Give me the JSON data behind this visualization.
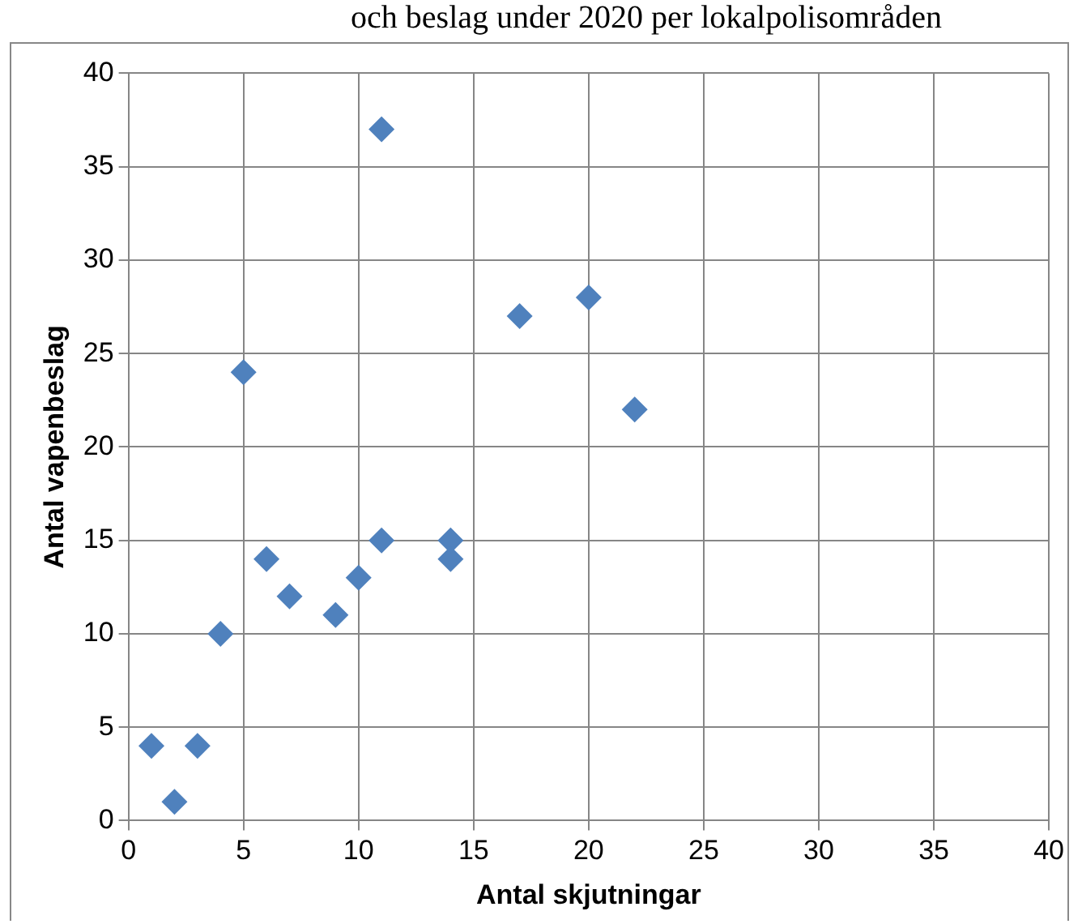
{
  "chart_data": {
    "type": "scatter",
    "title": "och beslag under 2020 per lokalpolisområden",
    "xlabel": "Antal skjutningar",
    "ylabel": "Antal vapenbeslag",
    "x": [
      1,
      2,
      3,
      4,
      5,
      6,
      7,
      9,
      10,
      11,
      11,
      14,
      14,
      17,
      20,
      22
    ],
    "values": [
      4,
      1,
      4,
      10,
      24,
      14,
      12,
      11,
      13,
      15,
      37,
      15,
      14,
      27,
      28,
      22
    ],
    "color": "#4f81bd",
    "marker": "diamond",
    "xlim": [
      0,
      40
    ],
    "xticks": [
      0,
      5,
      10,
      15,
      20,
      25,
      30,
      35,
      40
    ],
    "ylim": [
      0,
      40
    ],
    "yticks": [
      0,
      5,
      10,
      15,
      20,
      25,
      30,
      35,
      40
    ],
    "grid": true,
    "legend": false
  }
}
